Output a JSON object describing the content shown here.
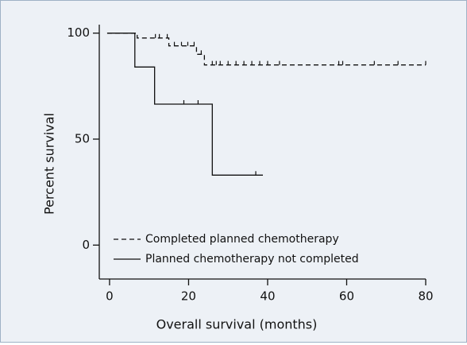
{
  "chart_data": {
    "type": "step",
    "x_label": "Overall survival (months)",
    "y_label": "Percent survival",
    "xlim": [
      -2.6,
      80
    ],
    "ylim": [
      -16,
      104
    ],
    "xticks": [
      0,
      20,
      40,
      60,
      80
    ],
    "yticks": [
      0,
      50,
      100
    ],
    "legend": "lower left",
    "series": [
      {
        "name": "Completed planned chemotherapy",
        "color": "#111111",
        "dash": "dashed",
        "x": [
          -0.6,
          7,
          15,
          22,
          24,
          80
        ],
        "values": [
          100,
          97.7,
          94,
          90,
          85,
          85
        ],
        "censor_x": [
          11.6,
          12.6,
          14.6,
          16.4,
          18.2,
          19.8,
          21.4,
          23.2,
          26,
          27,
          28,
          30,
          32,
          34,
          36,
          38,
          40,
          43,
          58,
          59,
          67,
          73,
          80
        ],
        "censor_y": [
          97.7,
          97.7,
          97.7,
          94,
          94,
          94,
          94,
          90,
          85,
          85,
          85,
          85,
          85,
          85,
          85,
          85,
          85,
          85,
          85,
          85,
          85,
          85,
          85
        ]
      },
      {
        "name": "Planned chemotherapy not completed",
        "color": "#111111",
        "dash": "solid",
        "x": [
          -0.6,
          6.4,
          11.4,
          26,
          38.8
        ],
        "values": [
          100,
          84,
          66.5,
          33,
          33
        ],
        "censor_x": [
          18.8,
          22.4,
          37
        ],
        "censor_y": [
          66.5,
          66.5,
          33
        ]
      }
    ]
  }
}
